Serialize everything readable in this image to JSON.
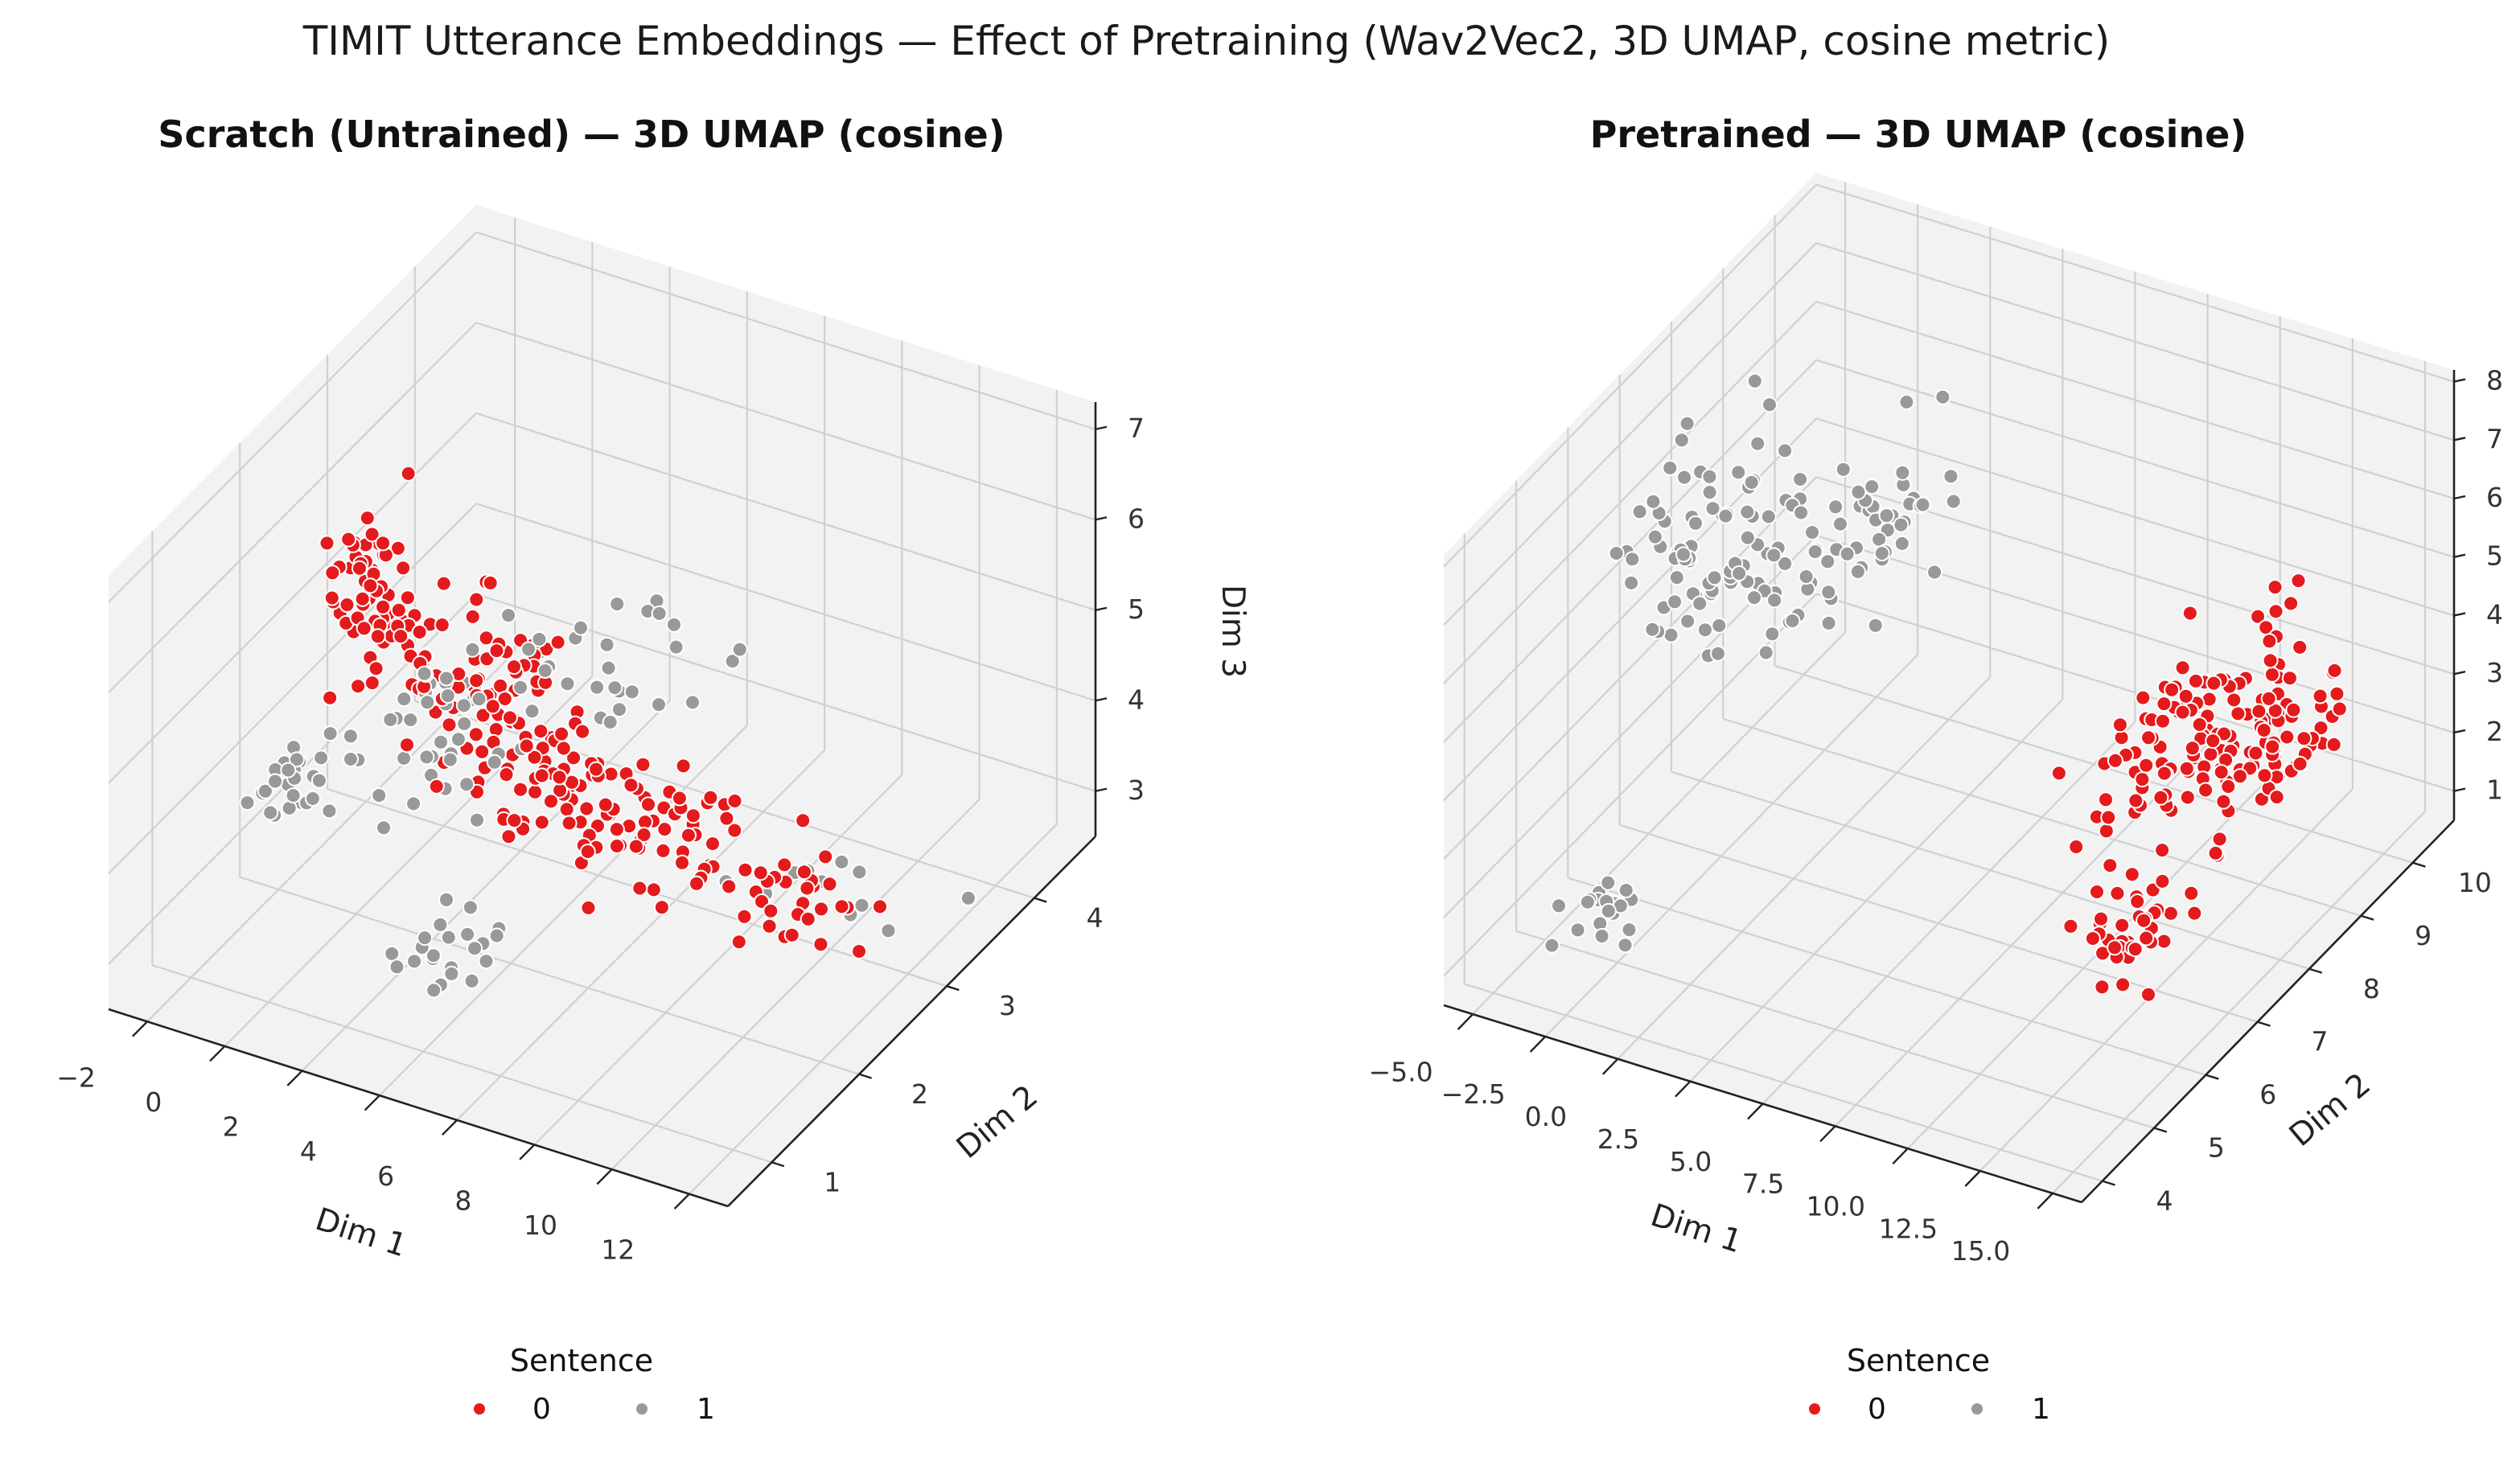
{
  "figure": {
    "suptitle": "TIMIT Utterance Embeddings — Effect of Pretraining (Wav2Vec2, 3D UMAP, cosine metric)"
  },
  "colors": {
    "sentence_0": "#e41a1c",
    "sentence_1": "#999999",
    "pane": "#f2f2f2",
    "grid": "#d0d0d0"
  },
  "chart_data": [
    {
      "type": "scatter",
      "title": "Scratch (Untrained) — 3D UMAP (cosine)",
      "xlabel": "Dim 1",
      "ylabel": "Dim 2",
      "zlabel": "Dim 3",
      "xlim": [
        -3,
        13
      ],
      "ylim": [
        0.5,
        4.7
      ],
      "zlim": [
        2.5,
        7.3
      ],
      "xticks": [
        -2,
        0,
        2,
        4,
        6,
        8,
        10,
        12
      ],
      "xtick_labels": [
        "−2",
        "0",
        "2",
        "4",
        "6",
        "8",
        "10",
        "12"
      ],
      "yticks": [
        1,
        2,
        3,
        4
      ],
      "ytick_labels": [
        "1",
        "2",
        "3",
        "4"
      ],
      "zticks": [
        3,
        4,
        5,
        6,
        7
      ],
      "ztick_labels": [
        "3",
        "4",
        "5",
        "6",
        "7"
      ],
      "legend": {
        "title": "Sentence",
        "entries": [
          "0",
          "1"
        ],
        "placement": "bottom-center"
      },
      "grid": true,
      "series": [
        {
          "name": "0",
          "color_key": "sentence_0",
          "clusters": [
            {
              "center": [
                0.5,
                1.8,
                6.6
              ],
              "spread": [
                0.8,
                0.3,
                0.4
              ],
              "n": 30
            },
            {
              "center": [
                1.0,
                2.0,
                5.8
              ],
              "spread": [
                1.2,
                0.4,
                0.5
              ],
              "n": 45
            },
            {
              "center": [
                2.5,
                2.3,
                5.0
              ],
              "spread": [
                1.5,
                0.5,
                0.5
              ],
              "n": 55
            },
            {
              "center": [
                4.0,
                2.4,
                4.3
              ],
              "spread": [
                1.5,
                0.4,
                0.5
              ],
              "n": 55
            },
            {
              "center": [
                6.5,
                2.6,
                3.7
              ],
              "spread": [
                1.8,
                0.4,
                0.4
              ],
              "n": 60
            },
            {
              "center": [
                9.5,
                2.8,
                3.2
              ],
              "spread": [
                1.4,
                0.3,
                0.3
              ],
              "n": 30
            }
          ]
        },
        {
          "name": "1",
          "color_key": "sentence_1",
          "clusters": [
            {
              "center": [
                0.0,
                1.2,
                4.8
              ],
              "spread": [
                0.8,
                0.3,
                0.3
              ],
              "n": 25
            },
            {
              "center": [
                2.5,
                1.8,
                5.2
              ],
              "spread": [
                1.5,
                0.6,
                0.6
              ],
              "n": 45
            },
            {
              "center": [
                4.0,
                1.3,
                3.4
              ],
              "spread": [
                1.2,
                0.3,
                0.3
              ],
              "n": 22
            },
            {
              "center": [
                5.0,
                2.8,
                5.2
              ],
              "spread": [
                1.5,
                0.5,
                0.5
              ],
              "n": 25
            },
            {
              "center": [
                9.5,
                3.2,
                2.9
              ],
              "spread": [
                1.5,
                0.3,
                0.3
              ],
              "n": 12
            }
          ]
        }
      ]
    },
    {
      "type": "scatter",
      "title": "Pretrained — 3D UMAP (cosine)",
      "xlabel": "Dim 1",
      "ylabel": "Dim 2",
      "zlabel": "",
      "xlim": [
        -6,
        16
      ],
      "ylim": [
        3.6,
        10.8
      ],
      "zlim": [
        0.5,
        8.2
      ],
      "xticks": [
        -5,
        -2.5,
        0,
        2.5,
        5,
        7.5,
        10,
        12.5,
        15
      ],
      "xtick_labels": [
        "−5.0",
        "−2.5",
        "0.0",
        "2.5",
        "5.0",
        "7.5",
        "10.0",
        "12.5",
        "15.0"
      ],
      "yticks": [
        4,
        5,
        6,
        7,
        8,
        9,
        10
      ],
      "ytick_labels": [
        "4",
        "5",
        "6",
        "7",
        "8",
        "9",
        "10"
      ],
      "zticks": [
        1,
        2,
        3,
        4,
        5,
        6,
        7,
        8
      ],
      "ztick_labels": [
        "1",
        "2",
        "3",
        "4",
        "5",
        "6",
        "7",
        "8"
      ],
      "legend": {
        "title": "Sentence",
        "entries": [
          "0",
          "1"
        ],
        "placement": "bottom-center"
      },
      "grid": true,
      "series": [
        {
          "name": "0",
          "color_key": "sentence_0",
          "clusters": [
            {
              "center": [
                12.5,
                7.5,
                4.5
              ],
              "spread": [
                1.2,
                1.3,
                1.0
              ],
              "n": 90
            },
            {
              "center": [
                13.5,
                8.8,
                3.3
              ],
              "spread": [
                1.0,
                1.0,
                1.0
              ],
              "n": 70
            },
            {
              "center": [
                12.5,
                6.5,
                1.8
              ],
              "spread": [
                1.0,
                1.0,
                0.6
              ],
              "n": 40
            }
          ]
        },
        {
          "name": "1",
          "color_key": "sentence_1",
          "clusters": [
            {
              "center": [
                -2.0,
                6.5,
                6.2
              ],
              "spread": [
                1.5,
                1.2,
                1.3
              ],
              "n": 80
            },
            {
              "center": [
                0.0,
                8.0,
                5.4
              ],
              "spread": [
                1.5,
                1.3,
                1.2
              ],
              "n": 60
            },
            {
              "center": [
                -3.5,
                5.2,
                0.9
              ],
              "spread": [
                1.0,
                0.6,
                0.4
              ],
              "n": 20
            }
          ]
        }
      ]
    }
  ]
}
